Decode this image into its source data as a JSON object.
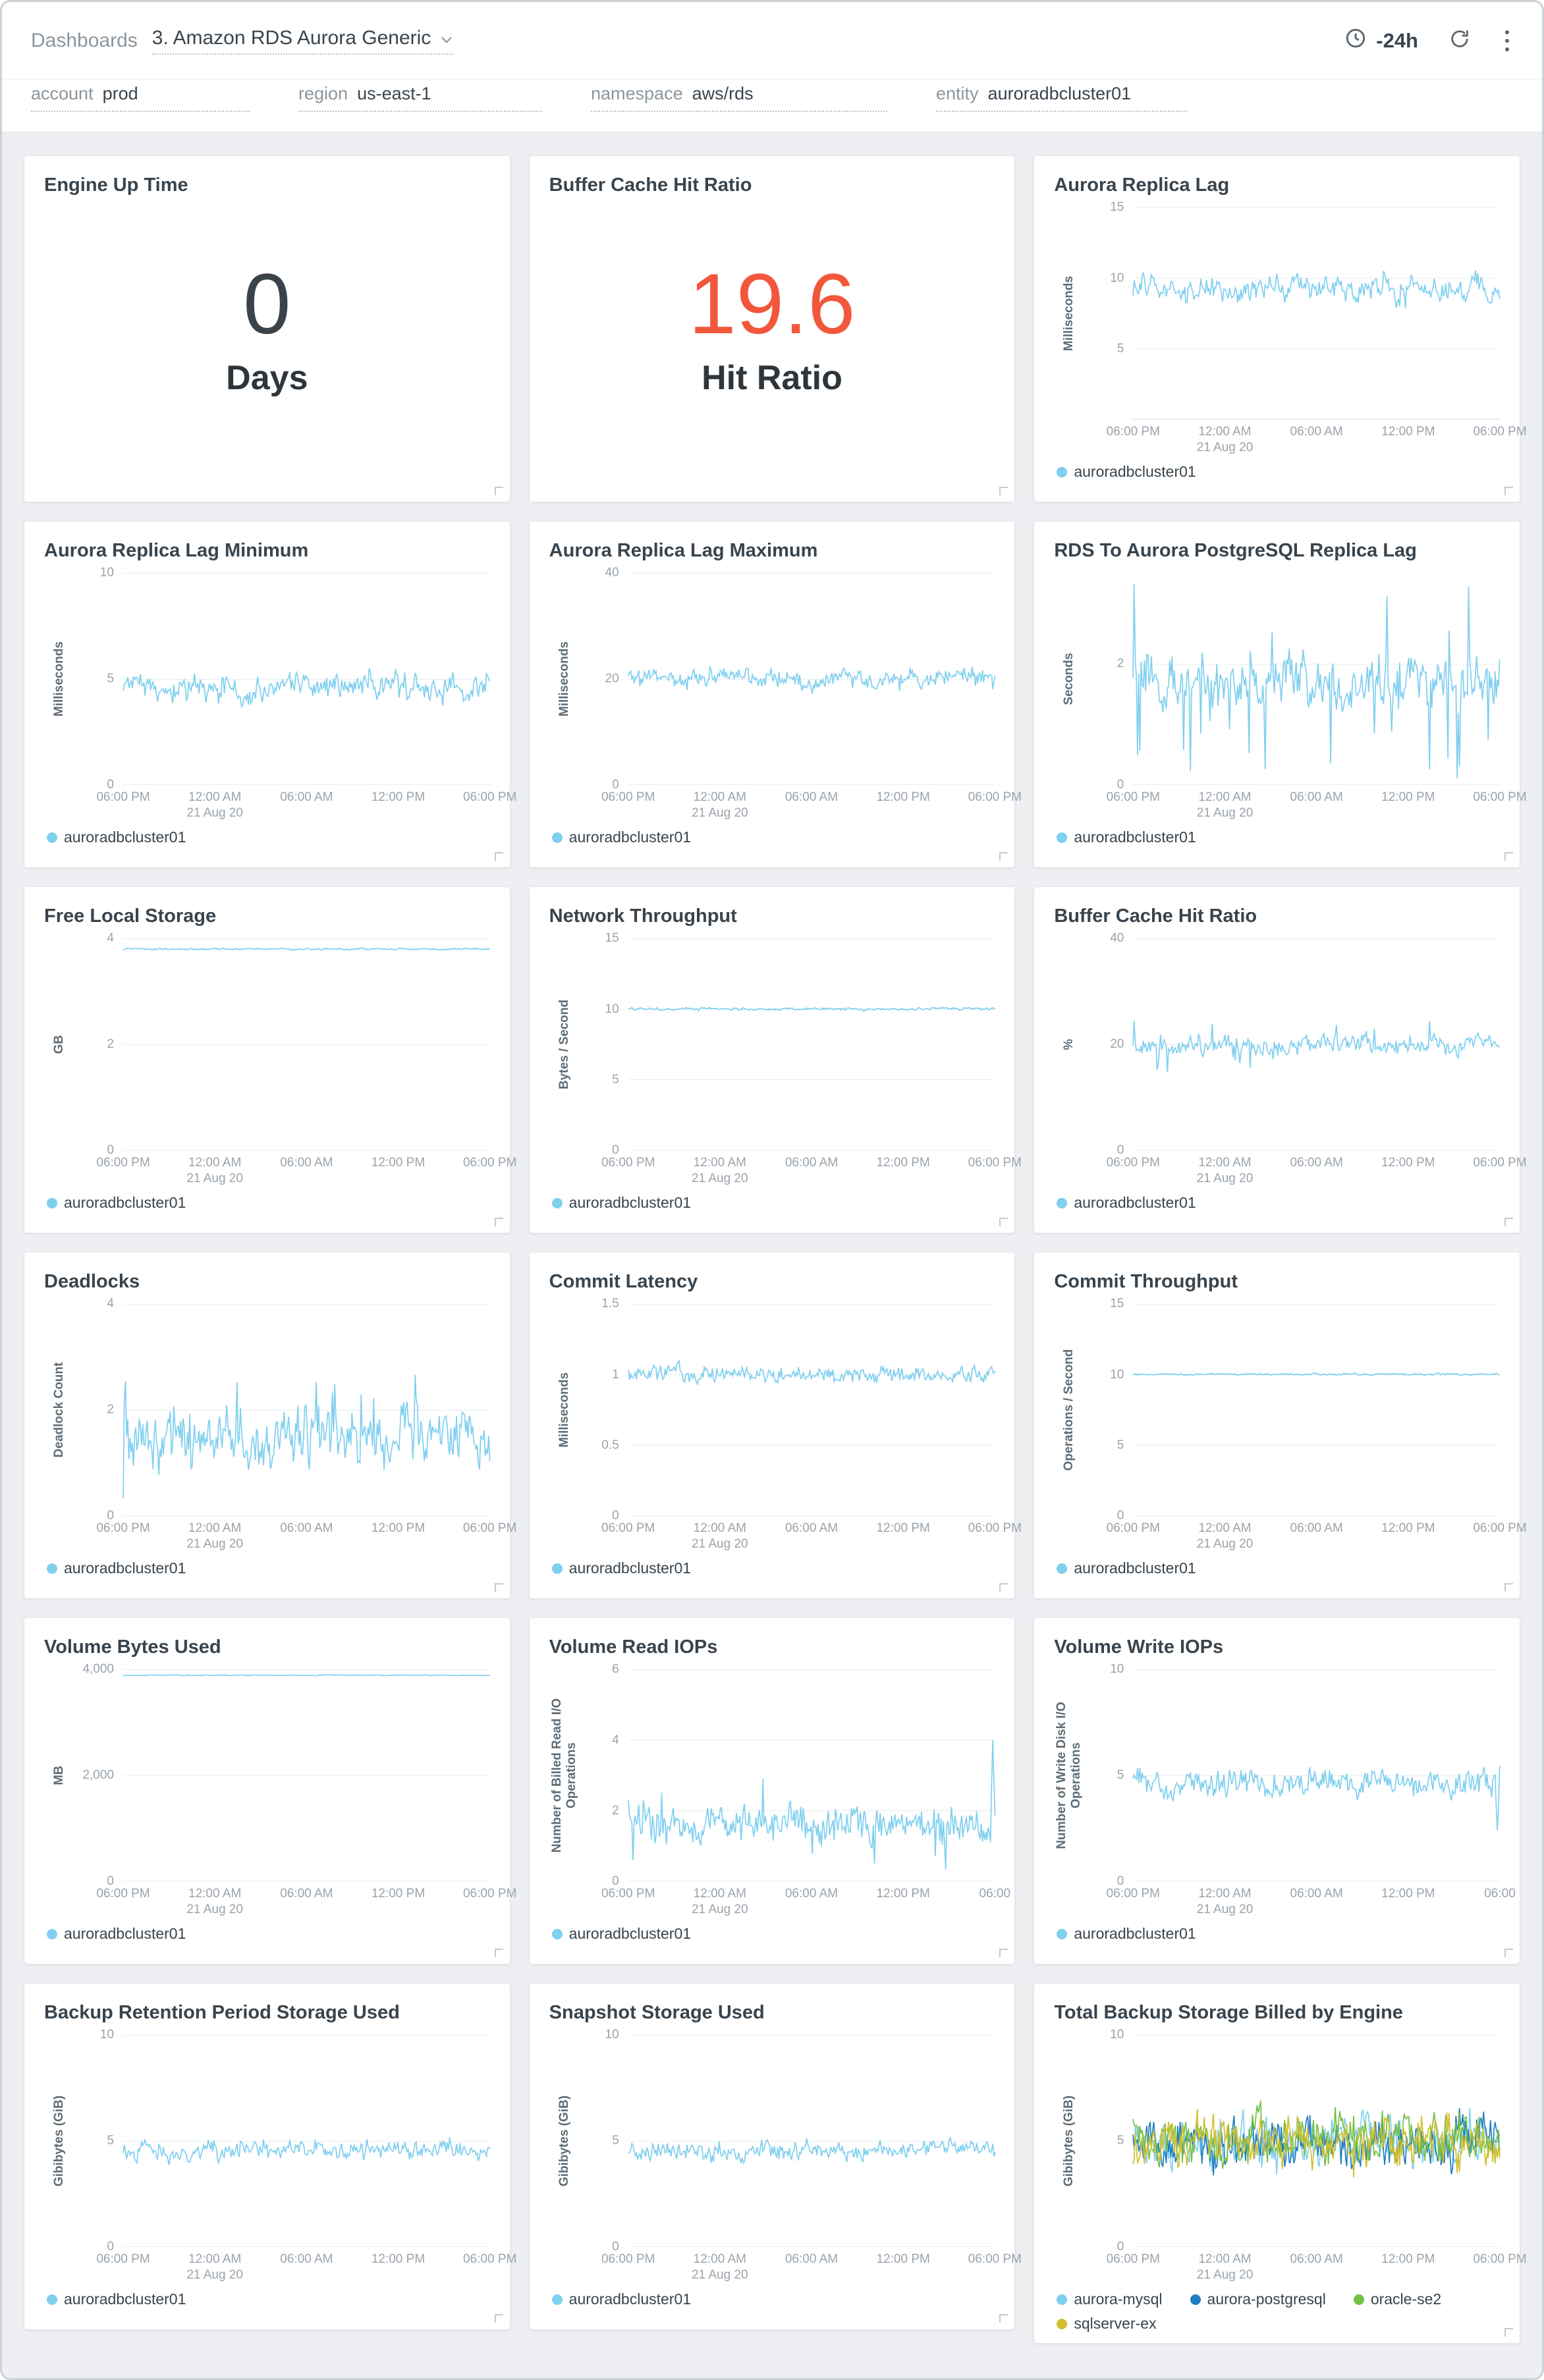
{
  "topbar": {
    "breadcrumb": "Dashboards",
    "title": "3. Amazon RDS Aurora Generic",
    "time_range": "-24h",
    "icons": {
      "title_caret": "chevron-down-icon",
      "time": "clock-icon",
      "refresh": "refresh-icon",
      "menu": "kebab-menu-icon"
    }
  },
  "filters": [
    {
      "label": "account",
      "value": "prod"
    },
    {
      "label": "region",
      "value": "us-east-1"
    },
    {
      "label": "namespace",
      "value": "aws/rds"
    },
    {
      "label": "entity",
      "value": "auroradbcluster01"
    }
  ],
  "colors": {
    "series_blue": "#7fcfef",
    "big_number_dark": "#3a424a",
    "big_number_orange": "#f2573c",
    "aurora_postgresql_blue": "#1f7fc2",
    "oracle_green": "#74c044",
    "sqlserver_yellow": "#d2bf2e"
  },
  "defaults": {
    "x_ticks": [
      "06:00 PM",
      "12:00 AM",
      "06:00 AM",
      "12:00 PM",
      "06:00 PM"
    ],
    "x_date": "21 Aug 20",
    "x_date_tick_index": 1
  },
  "panels": [
    {
      "kind": "big_number",
      "title": "Engine Up Time",
      "value": "0",
      "caption": "Days",
      "value_color": "#3a424a"
    },
    {
      "kind": "big_number",
      "title": "Buffer Cache Hit Ratio",
      "value": "19.6",
      "caption": "Hit Ratio",
      "value_color": "#f2573c"
    },
    {
      "kind": "line",
      "title": "Aurora Replica Lag",
      "ylabel": "Milliseconds",
      "ymax": 15,
      "yticks": [
        {
          "v": 5,
          "t": "5"
        },
        {
          "v": 10,
          "t": "10"
        },
        {
          "v": 15,
          "t": "15"
        }
      ],
      "series": [
        {
          "name": "auroradbcluster01",
          "color": "#7fcfef",
          "baseline": 9.2,
          "amplitude": 1.1
        }
      ]
    },
    {
      "kind": "line",
      "title": "Aurora Replica Lag Minimum",
      "ylabel": "Milliseconds",
      "ymax": 10,
      "yticks": [
        {
          "v": 0,
          "t": "0"
        },
        {
          "v": 5,
          "t": "5"
        },
        {
          "v": 10,
          "t": "10"
        }
      ],
      "series": [
        {
          "name": "auroradbcluster01",
          "color": "#7fcfef",
          "baseline": 4.6,
          "amplitude": 0.8
        }
      ]
    },
    {
      "kind": "line",
      "title": "Aurora Replica Lag Maximum",
      "ylabel": "Milliseconds",
      "ymax": 40,
      "yticks": [
        {
          "v": 0,
          "t": "0"
        },
        {
          "v": 20,
          "t": "20"
        },
        {
          "v": 40,
          "t": "40"
        }
      ],
      "series": [
        {
          "name": "auroradbcluster01",
          "color": "#7fcfef",
          "baseline": 20,
          "amplitude": 2.4
        }
      ]
    },
    {
      "kind": "line",
      "title": "RDS To Aurora PostgreSQL Replica Lag",
      "ylabel": "Seconds",
      "ymax": 3.5,
      "yticks": [
        {
          "v": 0,
          "t": "0"
        },
        {
          "v": 2,
          "t": "2"
        }
      ],
      "series": [
        {
          "name": "auroradbcluster01",
          "color": "#7fcfef",
          "baseline": 1.7,
          "amplitude": 0.5,
          "spike_chance": 0.07,
          "spike_amplitude": 1.1,
          "spike_down_bias": 0.75,
          "min": 0.1
        }
      ]
    },
    {
      "kind": "line",
      "title": "Free Local Storage",
      "ylabel": "GB",
      "ymax": 4,
      "yticks": [
        {
          "v": 0,
          "t": "0"
        },
        {
          "v": 2,
          "t": "2"
        },
        {
          "v": 4,
          "t": "4"
        }
      ],
      "series": [
        {
          "name": "auroradbcluster01",
          "color": "#7fcfef",
          "baseline": 3.8,
          "amplitude": 0.02
        }
      ]
    },
    {
      "kind": "line",
      "title": "Network Throughput",
      "ylabel": "Bytes / Second",
      "ymax": 15,
      "yticks": [
        {
          "v": 0,
          "t": "0"
        },
        {
          "v": 5,
          "t": "5"
        },
        {
          "v": 10,
          "t": "10"
        },
        {
          "v": 15,
          "t": "15"
        }
      ],
      "series": [
        {
          "name": "auroradbcluster01",
          "color": "#7fcfef",
          "baseline": 10,
          "amplitude": 0.12
        }
      ]
    },
    {
      "kind": "line",
      "title": "Buffer Cache Hit Ratio",
      "ylabel": "%",
      "ymax": 40,
      "yticks": [
        {
          "v": 0,
          "t": "0"
        },
        {
          "v": 20,
          "t": "20"
        },
        {
          "v": 40,
          "t": "40"
        }
      ],
      "series": [
        {
          "name": "auroradbcluster01",
          "color": "#7fcfef",
          "baseline": 20,
          "amplitude": 2.2,
          "spike_chance": 0.04,
          "spike_amplitude": 3.5,
          "spike_down_bias": 0.8
        }
      ]
    },
    {
      "kind": "line",
      "title": "Deadlocks",
      "ylabel": "Deadlock Count",
      "ymax": 4,
      "yticks": [
        {
          "v": 0,
          "t": "0"
        },
        {
          "v": 2,
          "t": "2"
        },
        {
          "v": 4,
          "t": "4"
        }
      ],
      "series": [
        {
          "name": "auroradbcluster01",
          "color": "#7fcfef",
          "baseline": 1.5,
          "amplitude": 0.65,
          "spike_chance": 0.05,
          "spike_amplitude": 0.9,
          "min": 0.1
        }
      ]
    },
    {
      "kind": "line",
      "title": "Commit Latency",
      "ylabel": "Milliseconds",
      "ymax": 1.5,
      "yticks": [
        {
          "v": 0,
          "t": "0"
        },
        {
          "v": 0.5,
          "t": "0.5"
        },
        {
          "v": 1,
          "t": "1"
        },
        {
          "v": 1.5,
          "t": "1.5"
        }
      ],
      "series": [
        {
          "name": "auroradbcluster01",
          "color": "#7fcfef",
          "baseline": 1.0,
          "amplitude": 0.07
        }
      ]
    },
    {
      "kind": "line",
      "title": "Commit Throughput",
      "ylabel": "Operations / Second",
      "ymax": 15,
      "yticks": [
        {
          "v": 0,
          "t": "0"
        },
        {
          "v": 5,
          "t": "5"
        },
        {
          "v": 10,
          "t": "10"
        },
        {
          "v": 15,
          "t": "15"
        }
      ],
      "series": [
        {
          "name": "auroradbcluster01",
          "color": "#7fcfef",
          "baseline": 10,
          "amplitude": 0.08
        }
      ]
    },
    {
      "kind": "line",
      "title": "Volume Bytes Used",
      "ylabel": "MB",
      "ymax": 4000,
      "yticks": [
        {
          "v": 0,
          "t": "0"
        },
        {
          "v": 2000,
          "t": "2,000"
        },
        {
          "v": 4000,
          "t": "4,000"
        }
      ],
      "series": [
        {
          "name": "auroradbcluster01",
          "color": "#7fcfef",
          "baseline": 3890,
          "amplitude": 10
        }
      ]
    },
    {
      "kind": "line",
      "title": "Volume Read IOPs",
      "ylabel": "Number of Billed Read I/O Operations",
      "ymax": 6,
      "x_ticks": [
        "06:00 PM",
        "12:00 AM",
        "06:00 AM",
        "12:00 PM",
        "06:00"
      ],
      "yticks": [
        {
          "v": 0,
          "t": "0"
        },
        {
          "v": 2,
          "t": "2"
        },
        {
          "v": 4,
          "t": "4"
        },
        {
          "v": 6,
          "t": "6"
        }
      ],
      "series": [
        {
          "name": "auroradbcluster01",
          "color": "#7fcfef",
          "baseline": 1.6,
          "amplitude": 0.6,
          "spike_chance": 0.05,
          "spike_amplitude": 0.9,
          "min": 0.2,
          "end_spike": 4
        }
      ]
    },
    {
      "kind": "line",
      "title": "Volume Write IOPs",
      "ylabel": "Number of Write Disk I/O Operations",
      "ymax": 10,
      "x_ticks": [
        "06:00 PM",
        "12:00 AM",
        "06:00 AM",
        "12:00 PM",
        "06:00"
      ],
      "yticks": [
        {
          "v": 0,
          "t": "0"
        },
        {
          "v": 5,
          "t": "5"
        },
        {
          "v": 10,
          "t": "10"
        }
      ],
      "series": [
        {
          "name": "auroradbcluster01",
          "color": "#7fcfef",
          "baseline": 4.6,
          "amplitude": 0.8,
          "min": 0.6,
          "end_spike": 2.4
        }
      ]
    },
    {
      "kind": "line",
      "title": "Backup Retention Period Storage Used",
      "ylabel": "Gibibytes (GiB)",
      "ymax": 10,
      "yticks": [
        {
          "v": 0,
          "t": "0"
        },
        {
          "v": 5,
          "t": "5"
        },
        {
          "v": 10,
          "t": "10"
        }
      ],
      "series": [
        {
          "name": "auroradbcluster01",
          "color": "#7fcfef",
          "baseline": 4.5,
          "amplitude": 0.55
        }
      ]
    },
    {
      "kind": "line",
      "title": "Snapshot Storage Used",
      "ylabel": "Gibibytes (GiB)",
      "ymax": 10,
      "yticks": [
        {
          "v": 0,
          "t": "0"
        },
        {
          "v": 5,
          "t": "5"
        },
        {
          "v": 10,
          "t": "10"
        }
      ],
      "series": [
        {
          "name": "auroradbcluster01",
          "color": "#7fcfef",
          "baseline": 4.5,
          "amplitude": 0.55
        }
      ]
    },
    {
      "kind": "line",
      "title": "Total Backup Storage Billed by Engine",
      "ylabel": "Gibibytes (GiB)",
      "ymax": 10,
      "yticks": [
        {
          "v": 0,
          "t": "0"
        },
        {
          "v": 5,
          "t": "5"
        },
        {
          "v": 10,
          "t": "10"
        }
      ],
      "series": [
        {
          "name": "aurora-mysql",
          "color": "#7fcfef",
          "baseline": 5.0,
          "amplitude": 1.4,
          "min": 2.5
        },
        {
          "name": "aurora-postgresql",
          "color": "#1f7fc2",
          "baseline": 4.9,
          "amplitude": 1.4,
          "min": 2.5
        },
        {
          "name": "oracle-se2",
          "color": "#74c044",
          "baseline": 5.1,
          "amplitude": 1.4,
          "min": 2.5
        },
        {
          "name": "sqlserver-ex",
          "color": "#d2bf2e",
          "baseline": 5.0,
          "amplitude": 1.4,
          "min": 2.5
        }
      ]
    }
  ]
}
